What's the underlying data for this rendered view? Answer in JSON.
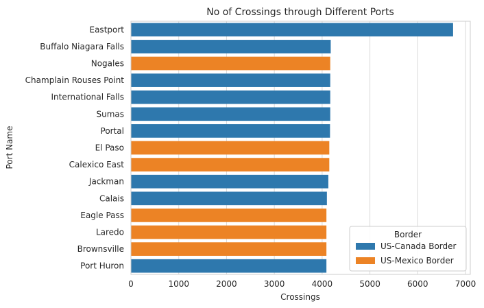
{
  "chart_data": {
    "type": "bar",
    "orientation": "horizontal",
    "title": "No of Crossings through Different Ports",
    "xlabel": "Crossings",
    "ylabel": "Port Name",
    "xlim": [
      0,
      7100
    ],
    "xticks": [
      0,
      1000,
      2000,
      3000,
      4000,
      5000,
      6000,
      7000
    ],
    "grid": "vertical",
    "categories": [
      "Eastport",
      "Buffalo Niagara Falls",
      "Nogales",
      "Champlain Rouses Point",
      "International Falls",
      "Sumas",
      "Portal",
      "El Paso",
      "Calexico East",
      "Jackman",
      "Calais",
      "Eagle Pass",
      "Laredo",
      "Brownsville",
      "Port Huron"
    ],
    "values": [
      6740,
      4180,
      4170,
      4170,
      4170,
      4170,
      4165,
      4150,
      4150,
      4130,
      4100,
      4090,
      4090,
      4090,
      4090
    ],
    "groups": [
      "US-Canada Border",
      "US-Canada Border",
      "US-Mexico Border",
      "US-Canada Border",
      "US-Canada Border",
      "US-Canada Border",
      "US-Canada Border",
      "US-Mexico Border",
      "US-Mexico Border",
      "US-Canada Border",
      "US-Canada Border",
      "US-Mexico Border",
      "US-Mexico Border",
      "US-Mexico Border",
      "US-Canada Border"
    ],
    "legend": {
      "title": "Border",
      "placement": "bottom-right",
      "entries": [
        {
          "name": "US-Canada Border",
          "color": "#2e78ad"
        },
        {
          "name": "US-Mexico Border",
          "color": "#ec8325"
        }
      ]
    }
  }
}
